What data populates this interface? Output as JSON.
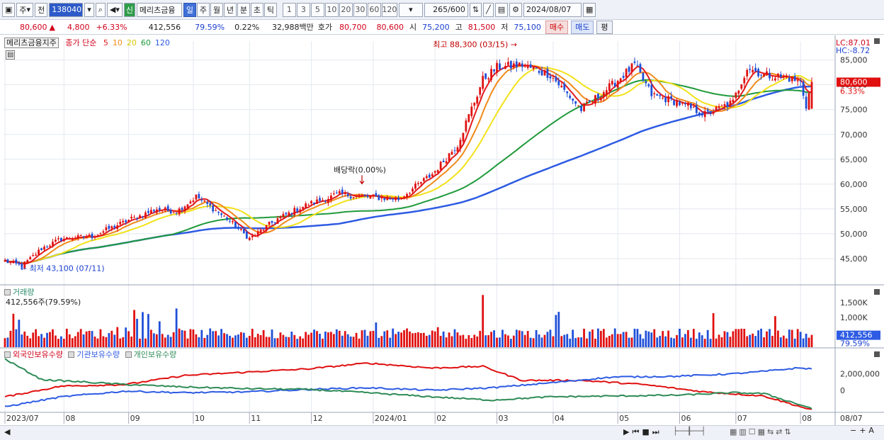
{
  "toolbar": {
    "market": "주",
    "prev": "전",
    "code": "138040",
    "name": "메리츠금융",
    "sin": "신",
    "periods": [
      "일",
      "주",
      "월",
      "년",
      "분",
      "초",
      "틱"
    ],
    "selected_period": "일",
    "intervals": [
      "1",
      "3",
      "5",
      "10",
      "20",
      "30",
      "60",
      "120"
    ],
    "count": "265",
    "count_max": "/600",
    "date": "2024/08/07"
  },
  "info": {
    "price": "80,600",
    "arrow": "▲",
    "change": "4,800",
    "change_pct": "+6.33%",
    "volume": "412,556",
    "vol_ratio": "79.59%",
    "turnover_pct": "0.22%",
    "amount": "32,988백만",
    "hoga_label": "호가",
    "ask": "80,700",
    "bid": "80,600",
    "open_label": "시",
    "open": "75,200",
    "high_label": "고",
    "high": "81,500",
    "low_label": "저",
    "low": "75,100",
    "buy": "매수",
    "sell": "매도",
    "avg": "평"
  },
  "colors": {
    "up": "#e01010",
    "down": "#1f4fd8",
    "ma5": "#e31a1c",
    "ma10": "#f08a1a",
    "ma20": "#f2e21a",
    "ma60": "#1f9a3a",
    "ma120": "#2d5be3",
    "foreign": "#e01010",
    "inst": "#2d5be3",
    "indiv": "#2e8b57"
  },
  "chart_data": {
    "type": "candlestick",
    "price_panel": {
      "stock_label": "메리츠금융지주",
      "ma_label": "종가 단순",
      "ma_periods": [
        "5",
        "10",
        "20",
        "60",
        "120"
      ],
      "y_ticks": [
        "85,000",
        "80,000",
        "75,000",
        "70,000",
        "65,000",
        "60,000",
        "55,000",
        "50,000",
        "45,000"
      ],
      "ylim": [
        40000,
        88800
      ],
      "lc": "LC:87.01",
      "hc": "HC:-8.72",
      "last_price_tag": "80,600",
      "last_change_tag": "6.33%",
      "annotations": {
        "high": "최고 88,300 (03/15)",
        "low": "최저 43,100 (07/11)",
        "ex_div": "배당락(0.00%)"
      },
      "anchors": [
        [
          "2023-07-03",
          44500
        ],
        [
          "2023-07-11",
          43500
        ],
        [
          "2023-07-20",
          47000
        ],
        [
          "2023-07-31",
          49000
        ],
        [
          "2023-08-15",
          49500
        ],
        [
          "2023-08-31",
          52500
        ],
        [
          "2023-09-15",
          55000
        ],
        [
          "2023-09-26",
          54500
        ],
        [
          "2023-10-05",
          57500
        ],
        [
          "2023-10-20",
          53000
        ],
        [
          "2023-11-01",
          49000
        ],
        [
          "2023-11-15",
          53000
        ],
        [
          "2023-11-30",
          56000
        ],
        [
          "2023-12-15",
          58000
        ],
        [
          "2023-12-28",
          57500
        ],
        [
          "2024-01-15",
          57000
        ],
        [
          "2024-01-31",
          62000
        ],
        [
          "2024-02-13",
          68000
        ],
        [
          "2024-02-26",
          81000
        ],
        [
          "2024-03-04",
          83500
        ],
        [
          "2024-03-15",
          84000
        ],
        [
          "2024-03-29",
          82000
        ],
        [
          "2024-04-15",
          75000
        ],
        [
          "2024-04-30",
          80000
        ],
        [
          "2024-05-10",
          84000
        ],
        [
          "2024-05-20",
          78000
        ],
        [
          "2024-05-31",
          76500
        ],
        [
          "2024-06-14",
          74000
        ],
        [
          "2024-06-28",
          76500
        ],
        [
          "2024-07-05",
          83500
        ],
        [
          "2024-07-15",
          82000
        ],
        [
          "2024-07-25",
          81500
        ],
        [
          "2024-08-01",
          80500
        ],
        [
          "2024-08-05",
          75800
        ],
        [
          "2024-08-07",
          80600
        ]
      ]
    },
    "volume_panel": {
      "title": "거래량",
      "current": "412,556주(79.59%)",
      "y_ticks": [
        "1,500K",
        "1,000K"
      ],
      "ylim": [
        0,
        1900000
      ],
      "last_tag": "412,556",
      "last_pct": "79.59%"
    },
    "holding_panel": {
      "series_names": [
        "외국인보유수량",
        "기관보유수량",
        "개인보유수량"
      ],
      "y_ticks": [
        "2,000,000",
        "0"
      ],
      "ylim": [
        -2600000,
        4200000
      ],
      "foreign_anchors": [
        [
          "2023-07-03",
          -800000
        ],
        [
          "2023-07-31",
          500000
        ],
        [
          "2023-08-31",
          700000
        ],
        [
          "2023-09-30",
          1800000
        ],
        [
          "2023-10-31",
          2200000
        ],
        [
          "2023-11-30",
          2600000
        ],
        [
          "2023-12-29",
          3300000
        ],
        [
          "2024-01-31",
          2700000
        ],
        [
          "2024-02-26",
          2900000
        ],
        [
          "2024-03-15",
          1200000
        ],
        [
          "2024-04-15",
          1200000
        ],
        [
          "2024-05-15",
          700000
        ],
        [
          "2024-06-14",
          -200000
        ],
        [
          "2024-07-15",
          -700000
        ],
        [
          "2024-08-07",
          -2400000
        ]
      ],
      "inst_anchors": [
        [
          "2023-07-03",
          -2000000
        ],
        [
          "2023-07-31",
          -800000
        ],
        [
          "2023-08-31",
          -100000
        ],
        [
          "2023-09-30",
          -300000
        ],
        [
          "2023-10-31",
          -200000
        ],
        [
          "2023-11-30",
          100000
        ],
        [
          "2023-12-29",
          300000
        ],
        [
          "2024-01-31",
          0
        ],
        [
          "2024-02-29",
          300000
        ],
        [
          "2024-03-29",
          900000
        ],
        [
          "2024-04-30",
          1600000
        ],
        [
          "2024-05-31",
          1700000
        ],
        [
          "2024-06-28",
          2000000
        ],
        [
          "2024-07-15",
          2300000
        ],
        [
          "2024-07-31",
          2700000
        ],
        [
          "2024-08-07",
          2600000
        ]
      ],
      "indiv_anchors": [
        [
          "2023-07-03",
          3800000
        ],
        [
          "2023-07-20",
          1300000
        ],
        [
          "2023-08-31",
          700000
        ],
        [
          "2023-09-30",
          400000
        ],
        [
          "2023-10-31",
          200000
        ],
        [
          "2023-11-30",
          100000
        ],
        [
          "2023-12-29",
          -300000
        ],
        [
          "2024-01-31",
          -800000
        ],
        [
          "2024-02-29",
          -1200000
        ],
        [
          "2024-03-29",
          -800000
        ],
        [
          "2024-04-30",
          -700000
        ],
        [
          "2024-05-31",
          -600000
        ],
        [
          "2024-06-28",
          -300000
        ],
        [
          "2024-07-15",
          -400000
        ],
        [
          "2024-08-07",
          -2200000
        ]
      ]
    },
    "x_labels": [
      "2023/07",
      "08",
      "09",
      "10",
      "11",
      "12",
      "2024/01",
      "02",
      "03",
      "04",
      "05",
      "06",
      "07",
      "08"
    ],
    "x_label_dates": [
      "2023-07-03",
      "2023-08-01",
      "2023-09-01",
      "2023-10-04",
      "2023-11-01",
      "2023-12-01",
      "2024-01-02",
      "2024-02-01",
      "2024-03-04",
      "2024-04-01",
      "2024-05-02",
      "2024-06-03",
      "2024-07-01",
      "2024-08-01"
    ],
    "x_right_label": "08/07",
    "grid": true
  }
}
